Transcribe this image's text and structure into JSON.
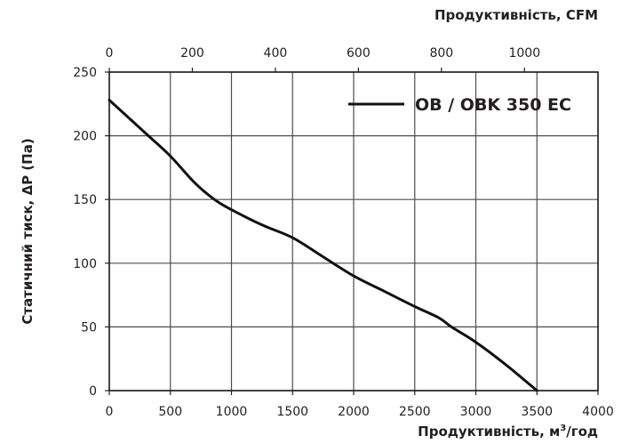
{
  "chart_data": {
    "type": "line",
    "title": "",
    "xlabel": "Продуктивність, м³/год",
    "x2label": "Продуктивність, CFM",
    "ylabel": "Статичний тиск, ΔP (Па)",
    "xlim": [
      0,
      4000
    ],
    "x2lim": [
      0,
      1177
    ],
    "ylim": [
      0,
      250
    ],
    "x_ticks": [
      "0",
      "500",
      "1000",
      "1500",
      "2000",
      "2500",
      "3000",
      "3500",
      "4000"
    ],
    "x2_ticks": [
      "0",
      "200",
      "400",
      "600",
      "800",
      "1000"
    ],
    "y_ticks": [
      "0",
      "50",
      "100",
      "150",
      "200",
      "250"
    ],
    "grid": true,
    "legend_position": "top-right",
    "series": [
      {
        "name": "OB / OBK 350 EC",
        "color": "#111111",
        "x": [
          0,
          320,
          500,
          700,
          860,
          1000,
          1250,
          1500,
          1750,
          2000,
          2250,
          2500,
          2700,
          2800,
          3000,
          3250,
          3500
        ],
        "y": [
          228,
          200,
          184,
          163,
          150,
          142,
          130,
          120,
          105,
          90,
          78,
          66,
          57,
          50,
          38,
          20,
          0
        ]
      }
    ]
  },
  "labels": {
    "top_axis_title": "Продуктивність, CFM",
    "bottom_axis_title_main": "Продуктивність, м",
    "bottom_axis_title_sup": "3",
    "bottom_axis_title_tail": "/год",
    "y_axis_title": "Статичний тиск, ΔP (Па)",
    "legend": "OB / OBK 350 EC"
  }
}
